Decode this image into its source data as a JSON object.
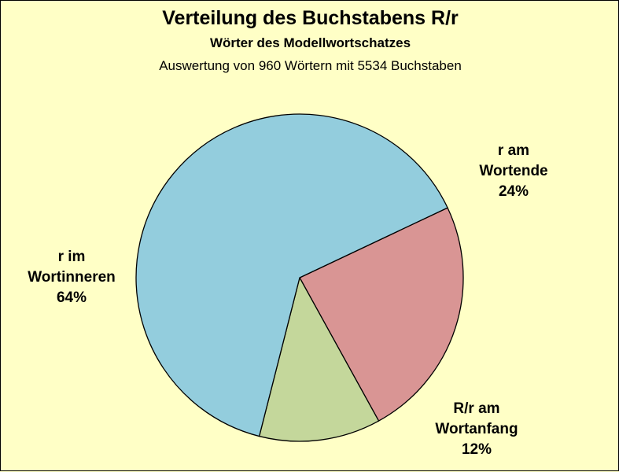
{
  "chart_data": {
    "type": "pie",
    "title": "Verteilung des Buchstabens R/r",
    "subtitle": "Wörter des Modellwortschatzes",
    "note": "Auswertung von 960 Wörtern mit 5534 Buchstaben",
    "slices": [
      {
        "label_lines": [
          "r am",
          "Wortende"
        ],
        "percent_label": "24%",
        "value": 24,
        "color": "#D99594"
      },
      {
        "label_lines": [
          "R/r am",
          "Wortanfang"
        ],
        "percent_label": "12%",
        "value": 12,
        "color": "#C4D79B"
      },
      {
        "label_lines": [
          "r im",
          "Wortinneren"
        ],
        "percent_label": "64%",
        "value": 64,
        "color": "#93CDDD"
      }
    ],
    "background": "#FFFFC6",
    "outline": "#000000"
  }
}
